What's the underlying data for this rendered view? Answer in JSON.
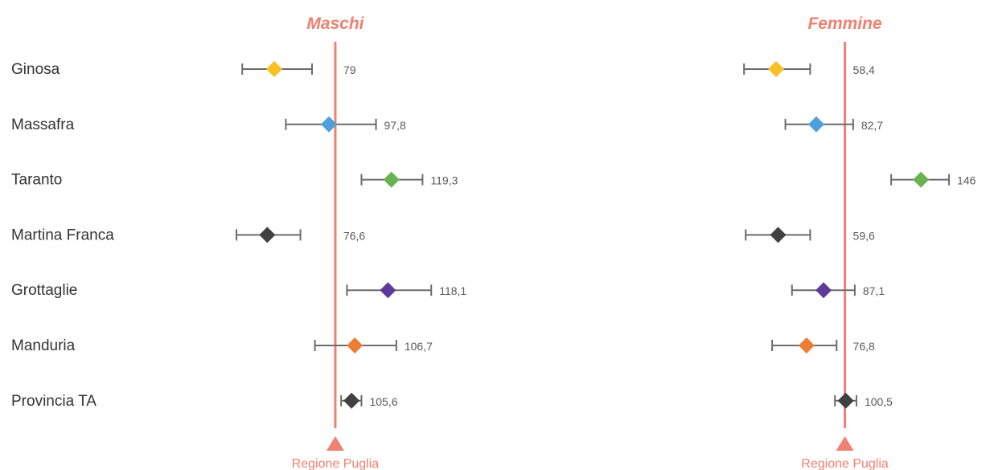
{
  "chart_data": {
    "type": "forest",
    "categories": [
      "Ginosa",
      "Massafra",
      "Taranto",
      "Martina Franca",
      "Grottaglie",
      "Manduria",
      "Provincia TA"
    ],
    "reference": {
      "label": "Regione Puglia",
      "value": 100,
      "color": "#f08070"
    },
    "marker_colors": [
      "#fbbf24",
      "#4e9fdc",
      "#6ab150",
      "#404040",
      "#5e3a9a",
      "#ef7c35",
      "#404040"
    ],
    "panels": [
      {
        "title": "Maschi",
        "values": [
          79,
          97.8,
          119.3,
          76.6,
          118.1,
          106.7,
          105.6
        ],
        "value_labels": [
          "79",
          "97,8",
          "119,3",
          "76,6",
          "118,1",
          "106,7",
          "105,6"
        ],
        "ci_low": [
          68,
          83,
          109,
          66,
          104,
          93,
          102
        ],
        "ci_high": [
          92,
          114,
          130,
          88,
          133,
          121,
          109
        ],
        "xlim": [
          40,
          170
        ]
      },
      {
        "title": "Femmine",
        "values": [
          58.4,
          82.7,
          146,
          59.6,
          87.1,
          76.8,
          100.5
        ],
        "value_labels": [
          "58,4",
          "82,7",
          "146",
          "59,6",
          "87,1",
          "76,8",
          "100,5"
        ],
        "ci_low": [
          39,
          64,
          128,
          40,
          68,
          56,
          94
        ],
        "ci_high": [
          79,
          105,
          163,
          79,
          106,
          95,
          107
        ],
        "xlim": [
          0,
          180
        ]
      }
    ]
  }
}
